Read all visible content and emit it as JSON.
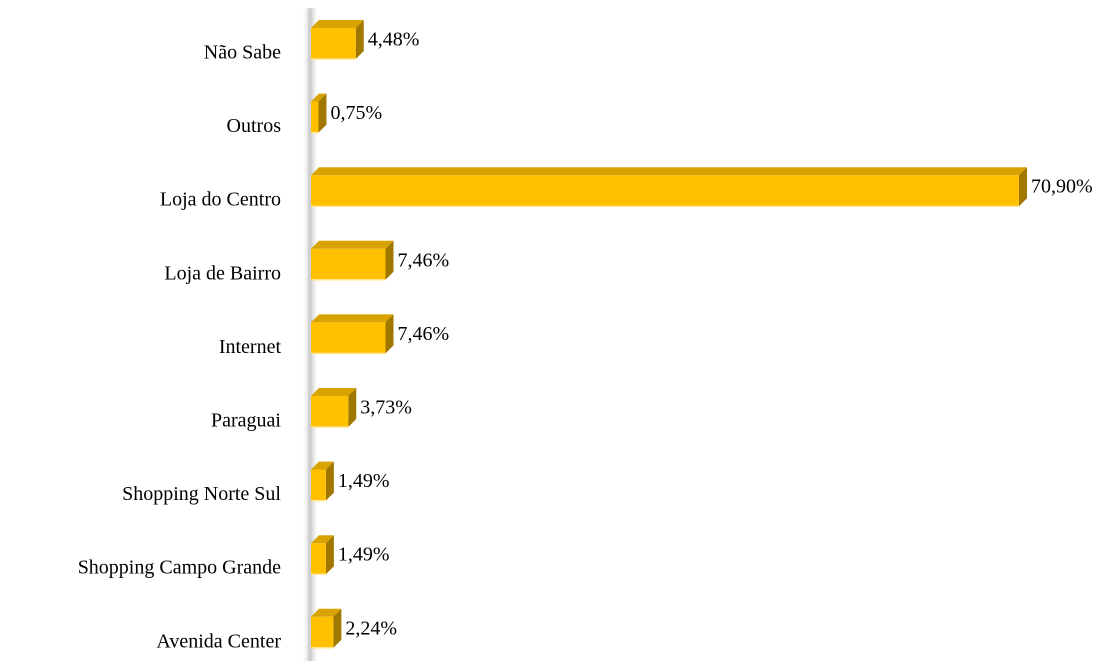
{
  "chart_data": {
    "type": "bar",
    "orientation": "horizontal",
    "style": "3d",
    "categories": [
      "Não Sabe",
      "Outros",
      "Loja do Centro",
      "Loja de Bairro",
      "Internet",
      "Paraguai",
      "Shopping Norte Sul",
      "Shopping Campo Grande",
      "Avenida Center"
    ],
    "values": [
      4.48,
      0.75,
      70.9,
      7.46,
      7.46,
      3.73,
      1.49,
      1.49,
      2.24
    ],
    "data_labels": [
      "4,48%",
      "0,75%",
      "70,90%",
      "7,46%",
      "7,46%",
      "3,73%",
      "1,49%",
      "1,49%",
      "2,24%"
    ],
    "unit": "%",
    "xlim": [
      0,
      70.9
    ],
    "grid": false,
    "legend": "none",
    "colors": {
      "bar_front": "#ffc000",
      "bar_top": "#d8a200",
      "bar_side": "#a07800",
      "bar_bottom": "#ffe48a",
      "axis_wall": "#c8c8c8"
    }
  }
}
